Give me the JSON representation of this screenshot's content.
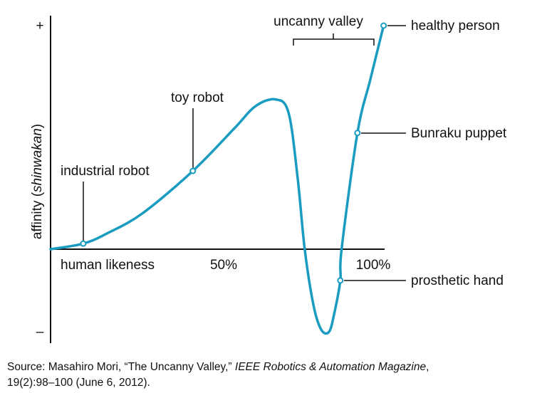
{
  "chart_data": {
    "type": "line",
    "xlabel": "human likeness",
    "ylabel_prefix": "affinity (",
    "ylabel_italic": "shinwakan",
    "ylabel_suffix": ")",
    "x_ticks": [
      "50%",
      "100%"
    ],
    "y_ticks": [
      "+",
      "–"
    ],
    "grid": false,
    "series_color": "#1a9cc0",
    "curve": {
      "x": [
        0,
        10.1,
        17.4,
        28.4,
        44,
        56.8,
        63.4,
        69.6,
        73.6,
        76.4,
        78.6,
        81.3,
        83.7,
        86.1,
        87.7,
        89.6,
        90,
        94.9,
        98.9,
        103
      ],
      "y": [
        0,
        0.025,
        0.07,
        0.16,
        0.35,
        0.54,
        0.64,
        0.67,
        0.61,
        0.32,
        0,
        -0.25,
        -0.36,
        -0.37,
        -0.29,
        -0.14,
        0,
        0.52,
        0.76,
        1.0
      ]
    },
    "points": [
      {
        "label": "industrial robot",
        "x": 10.1,
        "y": 0.025
      },
      {
        "label": "toy robot",
        "x": 44,
        "y": 0.35
      },
      {
        "label": "prosthetic hand",
        "x": 89.6,
        "y": -0.14
      },
      {
        "label": "Bunraku puppet",
        "x": 94.9,
        "y": 0.52
      },
      {
        "label": "healthy person",
        "x": 103,
        "y": 1.0
      }
    ],
    "annotation": "uncanny valley"
  },
  "source": {
    "prefix": "Source: Masahiro Mori, “The Uncanny Valley,” ",
    "journal": "IEEE Robotics & Automation Magazine",
    "suffix": ",",
    "line2": "19(2):98–100 (June 6, 2012)."
  }
}
